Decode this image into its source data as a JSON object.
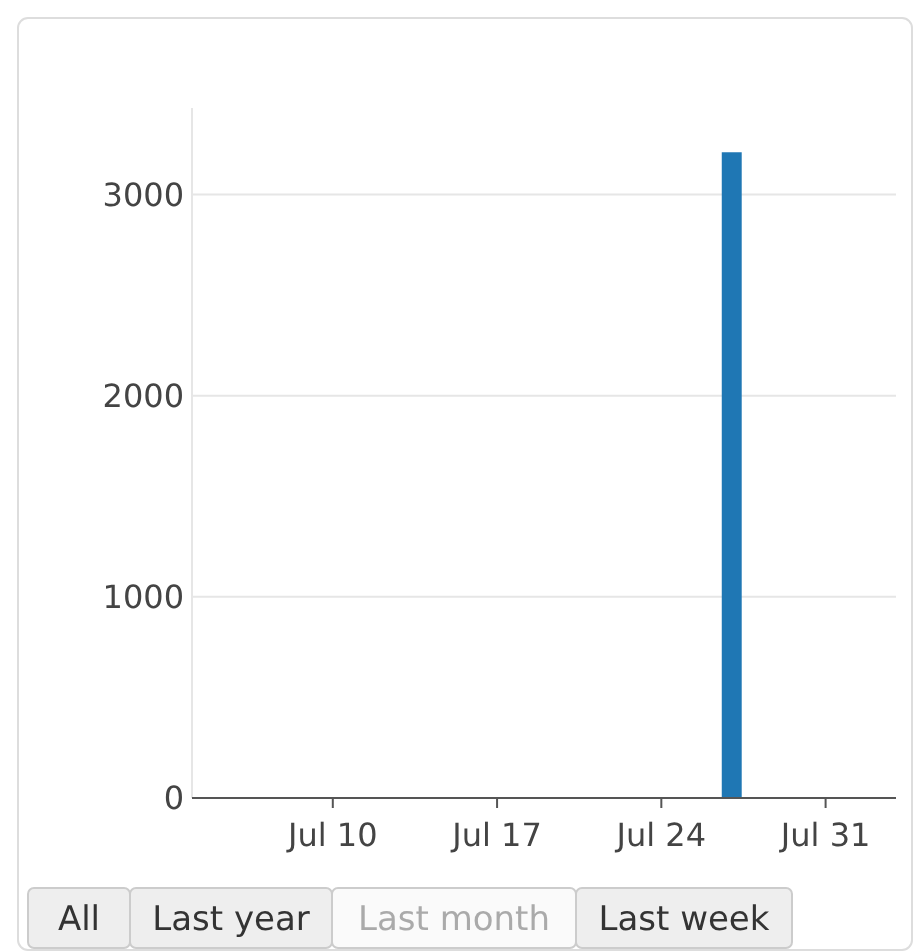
{
  "chart_data": {
    "type": "bar",
    "x": [
      "--07-27"
    ],
    "values": [
      3210
    ],
    "color": "#1f77b4",
    "xlim": [
      "--07-04",
      "--08-03"
    ],
    "xticks": [
      {
        "value": "--07-10",
        "label": "Jul 10"
      },
      {
        "value": "--07-17",
        "label": "Jul 17"
      },
      {
        "value": "--07-24",
        "label": "Jul 24"
      },
      {
        "value": "--07-31",
        "label": "Jul 31"
      }
    ],
    "ylim": [
      0,
      3430
    ],
    "yticks": [
      0,
      1000,
      2000,
      3000
    ],
    "grid": "y",
    "annotations": [
      "All",
      "Last year",
      "Last month",
      "Last week"
    ]
  }
}
